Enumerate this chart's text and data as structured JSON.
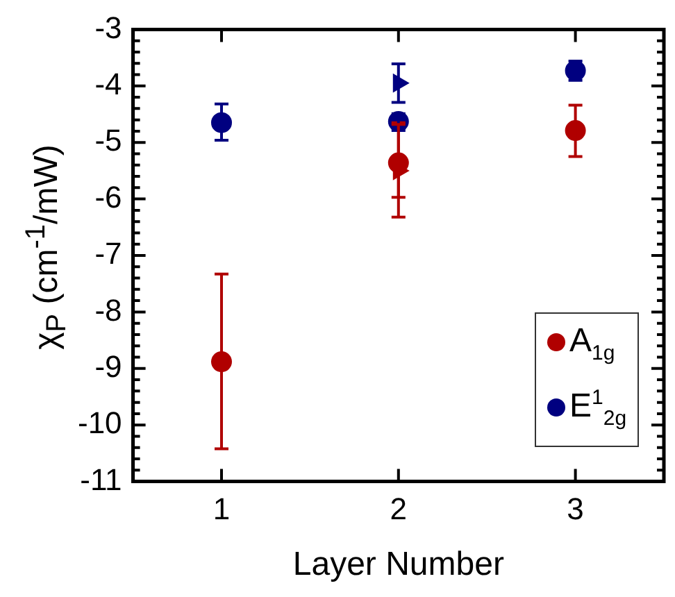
{
  "chart_data": {
    "type": "scatter",
    "xlabel": "Layer Number",
    "ylabel": "χ$_{P}$ (cm$^{-1}$/mW)",
    "xlim": [
      0.5,
      3.5
    ],
    "xticks": [
      1,
      2,
      3
    ],
    "ylim": [
      -11,
      -3
    ],
    "yticks": [
      -11,
      {
        "value": -10.8,
        "label": null
      },
      {
        "value": -10.6,
        "label": null
      },
      {
        "value": -10.4,
        "label": null
      },
      {
        "value": -10.2,
        "label": null
      },
      -10,
      {
        "value": -9.8,
        "label": null
      },
      {
        "value": -9.6,
        "label": null
      },
      {
        "value": -9.4,
        "label": null
      },
      {
        "value": -9.2,
        "label": null
      },
      -9,
      {
        "value": -8.8,
        "label": null
      },
      {
        "value": -8.6,
        "label": null
      },
      {
        "value": -8.4,
        "label": null
      },
      {
        "value": -8.2,
        "label": null
      },
      -8,
      {
        "value": -7.8,
        "label": null
      },
      {
        "value": -7.6,
        "label": null
      },
      {
        "value": -7.4,
        "label": null
      },
      {
        "value": -7.2,
        "label": null
      },
      -7,
      {
        "value": -6.8,
        "label": null
      },
      {
        "value": -6.6,
        "label": null
      },
      {
        "value": -6.4,
        "label": null
      },
      {
        "value": -6.2,
        "label": null
      },
      -6,
      {
        "value": -5.8,
        "label": null
      },
      {
        "value": -5.6,
        "label": null
      },
      {
        "value": -5.4,
        "label": null
      },
      {
        "value": -5.2,
        "label": null
      },
      -5,
      {
        "value": -4.8,
        "label": null
      },
      {
        "value": -4.6,
        "label": null
      },
      {
        "value": -4.4,
        "label": null
      },
      {
        "value": -4.2,
        "label": null
      },
      -4,
      {
        "value": -3.8,
        "label": null
      },
      {
        "value": -3.6,
        "label": null
      },
      {
        "value": -3.4,
        "label": null
      },
      {
        "value": -3.2,
        "label": null
      },
      -3
    ],
    "grid": false,
    "legend": "bottom right",
    "series": [
      {
        "name": "A$_{1g}$",
        "color": "#b00000",
        "marker": "circle",
        "x": [
          1,
          2,
          3
        ],
        "values": [
          -8.88,
          -5.36,
          -4.79
        ],
        "errors": [
          [
            -10.42,
            -7.33
          ],
          [
            -5.97,
            -4.65
          ],
          [
            -5.25,
            -4.34
          ]
        ]
      },
      {
        "name": "E$^{1}$$_{2g}$",
        "color": "#000080",
        "marker": "circle",
        "x": [
          1,
          2,
          3
        ],
        "values": [
          -4.65,
          -4.63,
          -3.73
        ],
        "errors": [
          [
            -4.96,
            -4.32
          ],
          [
            -4.79,
            -4.49
          ],
          [
            -3.9,
            -3.56
          ]
        ]
      },
      {
        "color": "#b00000",
        "marker": "triangle",
        "x": [
          2
        ],
        "values": [
          -5.5
        ],
        "errors": [
          [
            -6.32,
            -4.68
          ]
        ]
      },
      {
        "color": "#000080",
        "marker": "triangle",
        "x": [
          2
        ],
        "values": [
          -3.95
        ],
        "errors": [
          [
            -4.29,
            -3.61
          ]
        ]
      }
    ]
  }
}
